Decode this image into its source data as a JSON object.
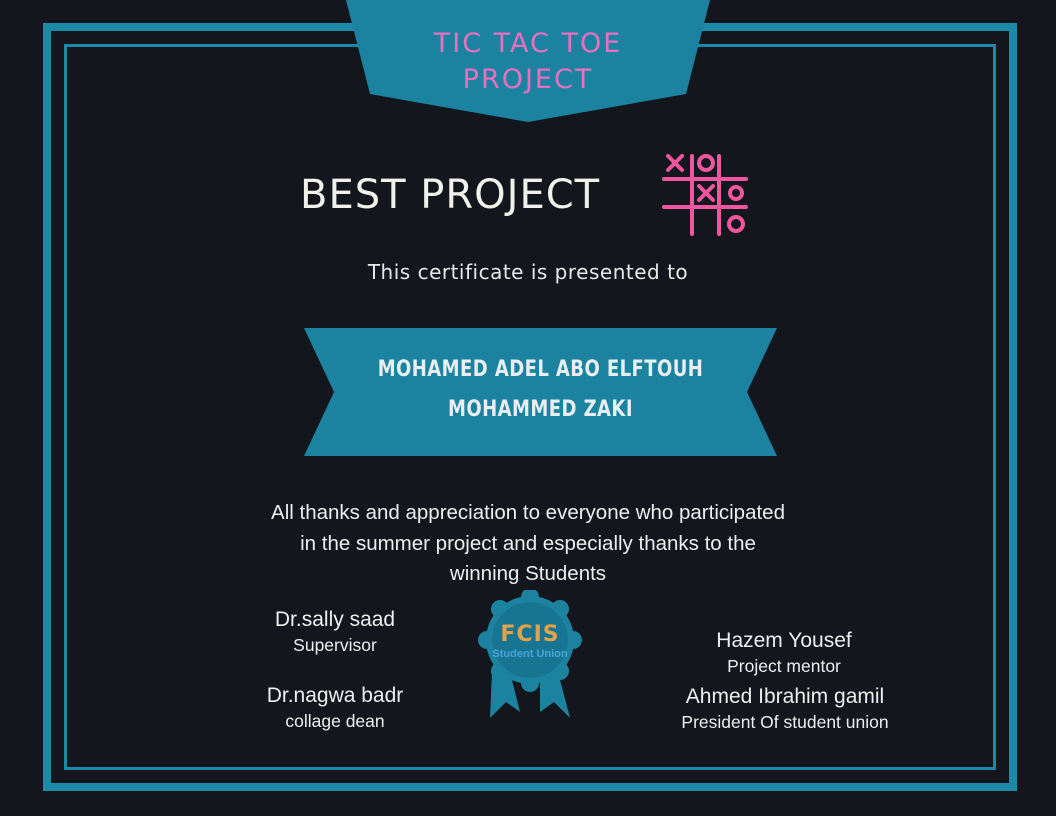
{
  "certificate": {
    "banner_line1": "TIC TAC TOE",
    "banner_line2": "PROJECT",
    "heading": "BEST PROJECT",
    "presented_to": "This certificate is presented to",
    "recipients": [
      "MOHAMED ADEL ABO ELFTOUH",
      "MOHAMMED ZAKI"
    ],
    "thanks_lines": [
      "All thanks and appreciation to everyone who participated",
      "in the summer project and especially thanks to the",
      "winning Students"
    ]
  },
  "signatories": {
    "supervisor": {
      "name": "Dr.sally saad",
      "role": "Supervisor"
    },
    "dean": {
      "name": "Dr.nagwa badr",
      "role": "collage dean"
    },
    "mentor": {
      "name": "Hazem Yousef",
      "role": "Project mentor"
    },
    "president": {
      "name": "Ahmed Ibrahim gamil",
      "role": "President Of student union"
    }
  },
  "seal": {
    "logo_text": "FCIS",
    "logo_subtitle": "Student Union",
    "icon": "award-ribbon-seal-icon"
  },
  "colors": {
    "background": "#13161d",
    "frame": "#1b8aa6",
    "accent_pink": "#e870c0",
    "ribbon": "#1b82a0"
  },
  "icons": {
    "game": "tic-tac-toe-icon"
  }
}
